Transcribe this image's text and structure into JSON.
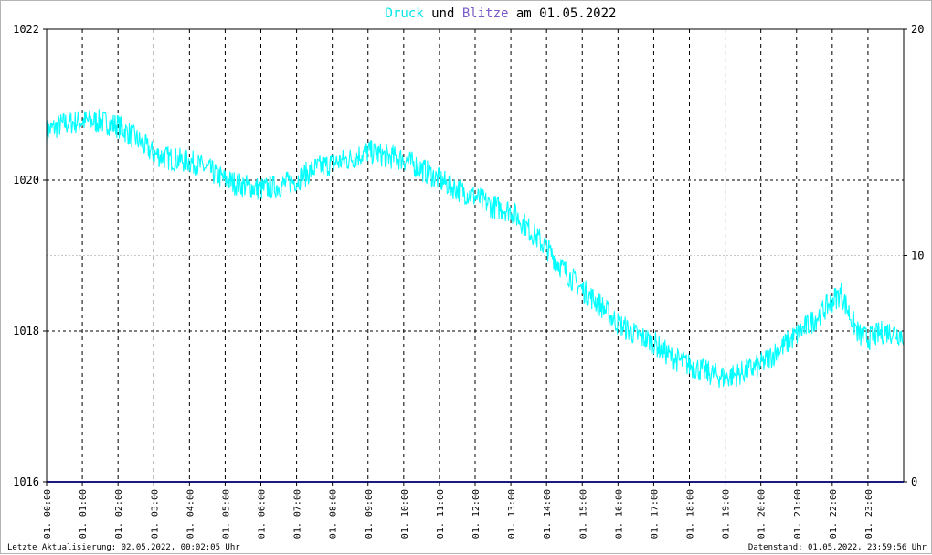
{
  "title": {
    "word1": "Druck",
    "word2": " und ",
    "word3": "Blitze",
    "word4": " am 01.05.2022",
    "color1": "#00e6e6",
    "color3": "#7a5cc8",
    "color_text": "#000000"
  },
  "footer": {
    "left": "Letzte Aktualisierung: 02.05.2022, 00:02:05 Uhr",
    "right": "Datenstand: 01.05.2022, 23:59:56 Uhr"
  },
  "chart_data": {
    "type": "line",
    "title": "Druck und Blitze am 01.05.2022",
    "x_tick_labels": [
      "01. 00:00",
      "01. 01:00",
      "01. 02:00",
      "01. 03:00",
      "01. 04:00",
      "01. 05:00",
      "01. 06:00",
      "01. 07:00",
      "01. 08:00",
      "01. 09:00",
      "01. 10:00",
      "01. 11:00",
      "01. 12:00",
      "01. 13:00",
      "01. 14:00",
      "01. 15:00",
      "01. 16:00",
      "01. 17:00",
      "01. 18:00",
      "01. 19:00",
      "01. 20:00",
      "01. 21:00",
      "01. 22:00",
      "01. 23:00"
    ],
    "y_left_ticks": [
      "1016",
      "1018",
      "1020",
      "1022"
    ],
    "y_left_range": [
      1016,
      1022
    ],
    "y_right_ticks": [
      "0",
      "10",
      "20"
    ],
    "y_right_range": [
      0,
      20
    ],
    "grid": true,
    "colors": {
      "pressure": "#00ffff",
      "lightning": "#1a1a80",
      "grid": "#000000",
      "grid_mid": "#c8c8c8"
    },
    "series": [
      {
        "name": "Druck",
        "axis": "left",
        "x_hours": [
          0,
          0.5,
          1,
          1.5,
          2,
          2.5,
          3,
          3.5,
          4,
          4.5,
          5,
          5.5,
          6,
          6.5,
          7,
          7.5,
          8,
          8.5,
          9,
          9.5,
          10,
          10.5,
          11,
          11.5,
          12,
          12.5,
          13,
          13.5,
          14,
          14.5,
          15,
          15.5,
          16,
          16.5,
          17,
          17.5,
          18,
          18.5,
          19,
          19.5,
          20,
          20.5,
          21,
          21.5,
          22,
          22.25,
          22.5,
          22.75,
          23,
          23.5,
          24
        ],
        "values": [
          1020.65,
          1020.75,
          1020.78,
          1020.78,
          1020.72,
          1020.55,
          1020.35,
          1020.28,
          1020.25,
          1020.15,
          1020.0,
          1019.93,
          1019.88,
          1019.92,
          1020.0,
          1020.15,
          1020.22,
          1020.28,
          1020.38,
          1020.32,
          1020.28,
          1020.15,
          1020.0,
          1019.88,
          1019.78,
          1019.65,
          1019.6,
          1019.35,
          1019.1,
          1018.8,
          1018.55,
          1018.35,
          1018.1,
          1017.95,
          1017.85,
          1017.65,
          1017.55,
          1017.45,
          1017.38,
          1017.45,
          1017.55,
          1017.75,
          1017.95,
          1018.15,
          1018.4,
          1018.5,
          1018.2,
          1017.95,
          1017.9,
          1018.0,
          1017.95
        ]
      },
      {
        "name": "Blitze",
        "axis": "right",
        "x_hours": [
          0,
          24
        ],
        "values": [
          0,
          0
        ]
      }
    ]
  }
}
